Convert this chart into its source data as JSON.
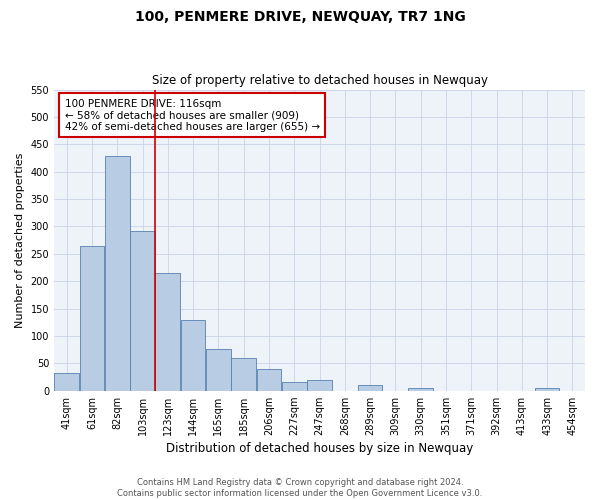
{
  "title": "100, PENMERE DRIVE, NEWQUAY, TR7 1NG",
  "subtitle": "Size of property relative to detached houses in Newquay",
  "xlabel": "Distribution of detached houses by size in Newquay",
  "ylabel": "Number of detached properties",
  "footer_line1": "Contains HM Land Registry data © Crown copyright and database right 2024.",
  "footer_line2": "Contains public sector information licensed under the Open Government Licence v3.0.",
  "bin_labels": [
    "41sqm",
    "61sqm",
    "82sqm",
    "103sqm",
    "123sqm",
    "144sqm",
    "165sqm",
    "185sqm",
    "206sqm",
    "227sqm",
    "247sqm",
    "268sqm",
    "289sqm",
    "309sqm",
    "330sqm",
    "351sqm",
    "371sqm",
    "392sqm",
    "413sqm",
    "433sqm",
    "454sqm"
  ],
  "bar_values": [
    32,
    265,
    428,
    292,
    215,
    129,
    76,
    59,
    40,
    15,
    20,
    0,
    10,
    0,
    5,
    0,
    0,
    0,
    0,
    5,
    0
  ],
  "bar_color": "#b8cce4",
  "bar_edge_color": "#5580b0",
  "ylim": [
    0,
    550
  ],
  "yticks": [
    0,
    50,
    100,
    150,
    200,
    250,
    300,
    350,
    400,
    450,
    500,
    550
  ],
  "vline_color": "#cc0000",
  "annotation_title": "100 PENMERE DRIVE: 116sqm",
  "annotation_line1": "← 58% of detached houses are smaller (909)",
  "annotation_line2": "42% of semi-detached houses are larger (655) →",
  "annotation_box_color": "#cc0000",
  "background_color": "#eef2f9",
  "grid_color": "#c8d4e8",
  "title_fontsize": 10,
  "subtitle_fontsize": 8.5
}
